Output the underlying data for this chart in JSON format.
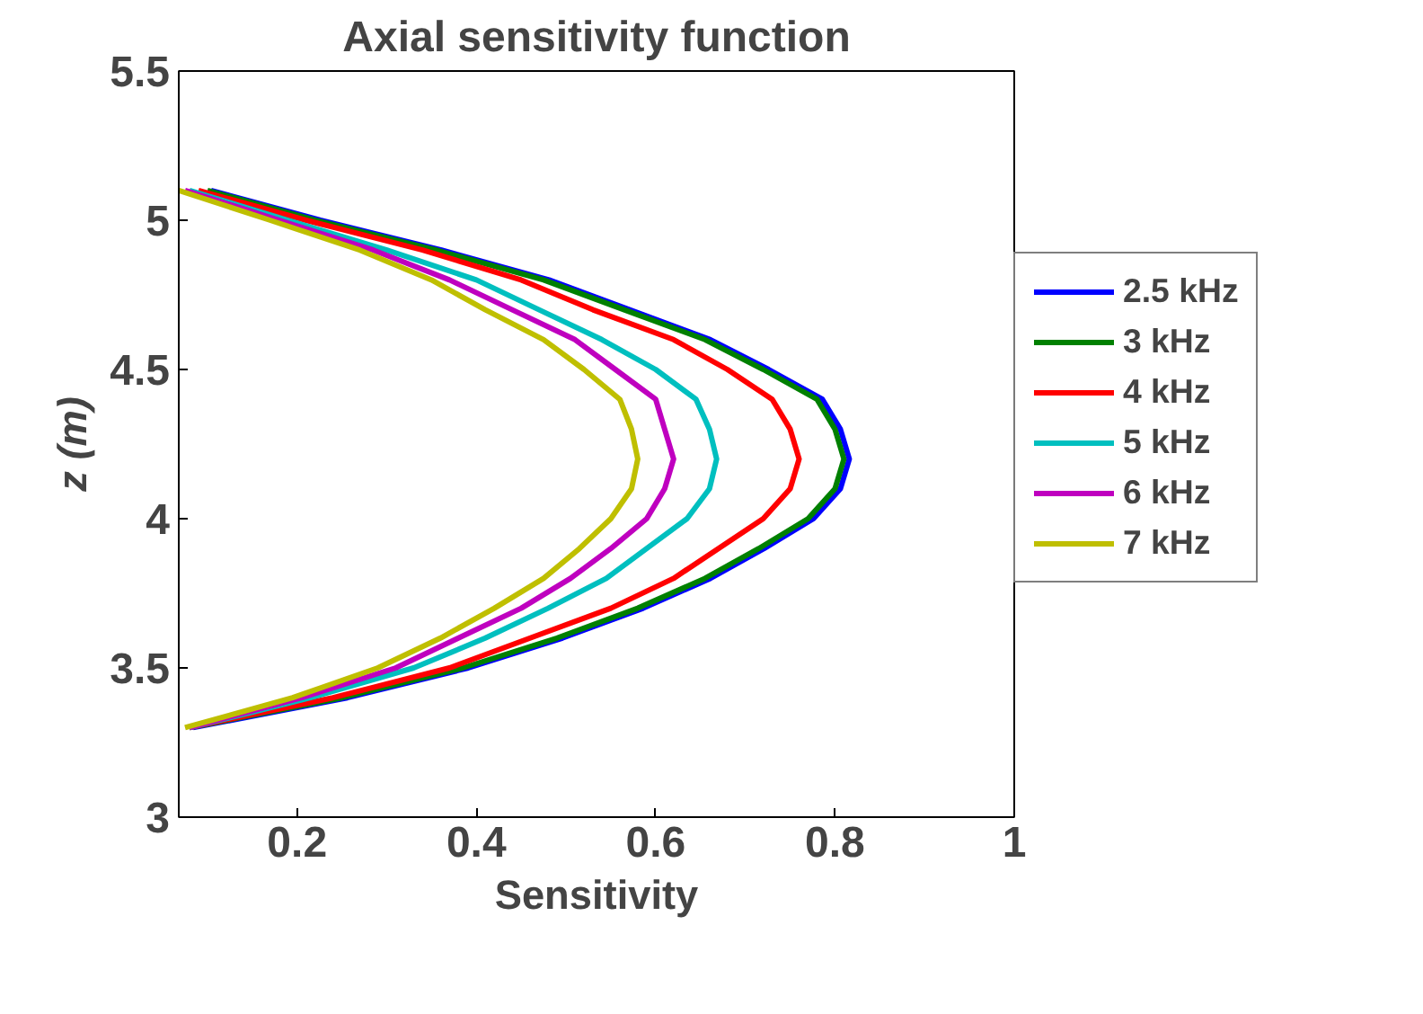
{
  "chart_data": {
    "type": "line",
    "title": "Axial sensitivity function",
    "xlabel": "Sensitivity",
    "ylabel": "z (m)",
    "xlim": [
      0.068,
      1
    ],
    "xticks": [
      0.2,
      0.4,
      0.6,
      0.8,
      1
    ],
    "ylim": [
      3,
      5.5
    ],
    "yticks": [
      3,
      3.5,
      4,
      4.5,
      5,
      5.5
    ],
    "grid": false,
    "legend": "right",
    "line_style": "solid",
    "marker": "none",
    "series": [
      {
        "name": "2.5 kHz",
        "color": "#0000ff",
        "values": [
          5.1,
          5.0,
          4.9,
          4.8,
          4.7,
          4.6,
          4.5,
          4.4,
          4.3,
          4.2,
          4.1,
          4.0,
          3.9,
          3.8,
          3.7,
          3.6,
          3.5,
          3.4,
          3.3
        ],
        "x": [
          0.104,
          0.226,
          0.361,
          0.481,
          0.571,
          0.661,
          0.726,
          0.786,
          0.806,
          0.816,
          0.806,
          0.776,
          0.721,
          0.661,
          0.586,
          0.496,
          0.391,
          0.256,
          0.084
        ]
      },
      {
        "name": "3 kHz",
        "color": "#008000",
        "values": [
          5.1,
          5.0,
          4.9,
          4.8,
          4.7,
          4.6,
          4.5,
          4.4,
          4.3,
          4.2,
          4.1,
          4.0,
          3.9,
          3.8,
          3.7,
          3.6,
          3.5,
          3.4,
          3.3
        ],
        "x": [
          0.1,
          0.22,
          0.355,
          0.475,
          0.565,
          0.655,
          0.72,
          0.78,
          0.8,
          0.81,
          0.8,
          0.77,
          0.715,
          0.655,
          0.58,
          0.49,
          0.385,
          0.25,
          0.08
        ]
      },
      {
        "name": "4 kHz",
        "color": "#ff0000",
        "values": [
          5.1,
          5.0,
          4.9,
          4.8,
          4.7,
          4.6,
          4.5,
          4.4,
          4.3,
          4.2,
          4.1,
          4.0,
          3.9,
          3.8,
          3.7,
          3.6,
          3.5,
          3.4,
          3.3
        ],
        "x": [
          0.09,
          0.21,
          0.34,
          0.45,
          0.53,
          0.62,
          0.68,
          0.73,
          0.75,
          0.76,
          0.75,
          0.72,
          0.67,
          0.62,
          0.55,
          0.46,
          0.37,
          0.24,
          0.08
        ]
      },
      {
        "name": "5 kHz",
        "color": "#00bfbf",
        "values": [
          5.1,
          5.0,
          4.9,
          4.8,
          4.7,
          4.6,
          4.5,
          4.4,
          4.3,
          4.2,
          4.1,
          4.0,
          3.9,
          3.8,
          3.7,
          3.6,
          3.5,
          3.4,
          3.3
        ],
        "x": [
          0.08,
          0.19,
          0.3,
          0.4,
          0.47,
          0.54,
          0.6,
          0.645,
          0.66,
          0.668,
          0.66,
          0.635,
          0.59,
          0.545,
          0.48,
          0.41,
          0.33,
          0.215,
          0.08
        ]
      },
      {
        "name": "6 kHz",
        "color": "#bf00bf",
        "values": [
          5.1,
          5.0,
          4.9,
          4.8,
          4.7,
          4.6,
          4.5,
          4.4,
          4.3,
          4.2,
          4.1,
          4.0,
          3.9,
          3.8,
          3.7,
          3.6,
          3.5,
          3.4,
          3.3
        ],
        "x": [
          0.075,
          0.18,
          0.285,
          0.37,
          0.44,
          0.51,
          0.555,
          0.6,
          0.61,
          0.62,
          0.61,
          0.59,
          0.55,
          0.505,
          0.45,
          0.38,
          0.31,
          0.205,
          0.08
        ]
      },
      {
        "name": "7 kHz",
        "color": "#bfbf00",
        "values": [
          5.1,
          5.0,
          4.9,
          4.8,
          4.7,
          4.6,
          4.5,
          4.4,
          4.3,
          4.2,
          4.1,
          4.0,
          3.9,
          3.8,
          3.7,
          3.6,
          3.5,
          3.4,
          3.3
        ],
        "x": [
          0.068,
          0.17,
          0.27,
          0.35,
          0.41,
          0.475,
          0.52,
          0.56,
          0.573,
          0.58,
          0.573,
          0.55,
          0.515,
          0.475,
          0.42,
          0.36,
          0.29,
          0.195,
          0.075
        ]
      }
    ]
  }
}
